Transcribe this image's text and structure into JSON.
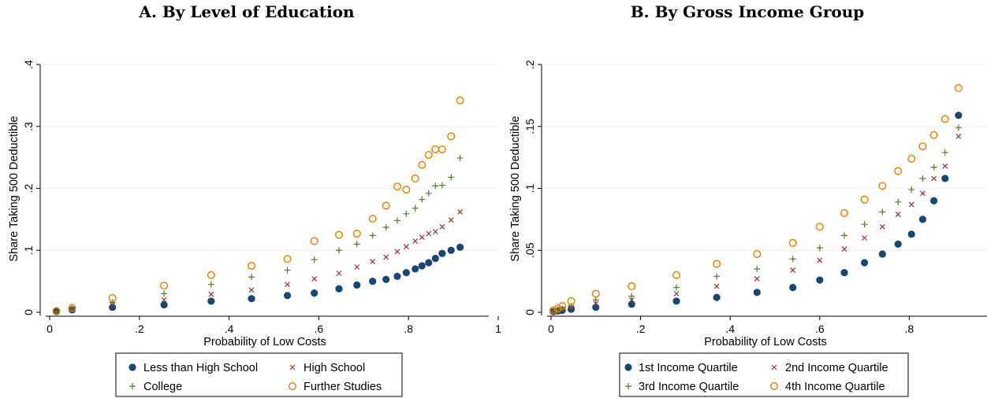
{
  "chart_data": [
    {
      "type": "scatter",
      "title": "A. By Level of Education",
      "xlabel": "Probability of Low Costs",
      "ylabel": "Share Taking 500 Deductible",
      "xlim": [
        0,
        1
      ],
      "ylim": [
        0,
        0.4
      ],
      "xticks": [
        0,
        0.2,
        0.4,
        0.6,
        0.8,
        1
      ],
      "xtick_labels": [
        "0",
        ".2",
        ".4",
        ".6",
        ".8",
        "1"
      ],
      "yticks": [
        0,
        0.1,
        0.2,
        0.3,
        0.4
      ],
      "ytick_labels": [
        "0",
        ".1",
        ".2",
        ".3",
        ".4"
      ],
      "grid": "horizontal",
      "legend_position": "bottom",
      "series": [
        {
          "name": "Less than High School",
          "marker": "filled-circle",
          "color": "#1a476f",
          "x": [
            0.015,
            0.05,
            0.14,
            0.255,
            0.36,
            0.45,
            0.53,
            0.59,
            0.645,
            0.685,
            0.72,
            0.75,
            0.775,
            0.795,
            0.815,
            0.83,
            0.845,
            0.86,
            0.875,
            0.895,
            0.915
          ],
          "y": [
            0.001,
            0.004,
            0.008,
            0.012,
            0.018,
            0.022,
            0.027,
            0.031,
            0.038,
            0.044,
            0.05,
            0.053,
            0.058,
            0.064,
            0.07,
            0.075,
            0.08,
            0.087,
            0.095,
            0.1,
            0.105
          ]
        },
        {
          "name": "High School",
          "marker": "x",
          "color": "#90353b",
          "x": [
            0.015,
            0.05,
            0.14,
            0.255,
            0.36,
            0.45,
            0.53,
            0.59,
            0.645,
            0.685,
            0.72,
            0.75,
            0.775,
            0.795,
            0.815,
            0.83,
            0.845,
            0.86,
            0.875,
            0.895,
            0.915
          ],
          "y": [
            0.001,
            0.005,
            0.012,
            0.02,
            0.029,
            0.036,
            0.045,
            0.054,
            0.063,
            0.073,
            0.082,
            0.089,
            0.098,
            0.106,
            0.115,
            0.121,
            0.127,
            0.13,
            0.138,
            0.149,
            0.162
          ]
        },
        {
          "name": "College",
          "marker": "plus",
          "color": "#55752f",
          "x": [
            0.015,
            0.05,
            0.14,
            0.255,
            0.36,
            0.45,
            0.53,
            0.59,
            0.645,
            0.685,
            0.72,
            0.75,
            0.775,
            0.795,
            0.815,
            0.83,
            0.845,
            0.86,
            0.875,
            0.895,
            0.915
          ],
          "y": [
            0.001,
            0.006,
            0.016,
            0.03,
            0.045,
            0.057,
            0.068,
            0.085,
            0.1,
            0.11,
            0.124,
            0.137,
            0.148,
            0.159,
            0.168,
            0.182,
            0.192,
            0.204,
            0.205,
            0.218,
            0.249
          ]
        },
        {
          "name": "Further Studies",
          "marker": "hollow-circle",
          "color": "#e37e00",
          "x": [
            0.015,
            0.05,
            0.14,
            0.255,
            0.36,
            0.45,
            0.53,
            0.59,
            0.645,
            0.685,
            0.72,
            0.75,
            0.775,
            0.795,
            0.815,
            0.83,
            0.845,
            0.86,
            0.875,
            0.895,
            0.915
          ],
          "y": [
            0.002,
            0.007,
            0.023,
            0.043,
            0.06,
            0.075,
            0.086,
            0.115,
            0.125,
            0.127,
            0.151,
            0.172,
            0.203,
            0.198,
            0.216,
            0.238,
            0.254,
            0.263,
            0.263,
            0.284,
            0.342
          ]
        }
      ]
    },
    {
      "type": "scatter",
      "title": "B. By Gross Income Group",
      "xlabel": "Probability of Low Costs",
      "ylabel": "Share Taking 500 Deductible",
      "xlim": [
        0,
        1
      ],
      "ylim": [
        0,
        0.2
      ],
      "xticks": [
        0,
        0.2,
        0.4,
        0.6,
        0.8,
        1
      ],
      "xtick_labels": [
        "0",
        ".2",
        ".4",
        ".6",
        ".8",
        "1"
      ],
      "yticks": [
        0,
        0.05,
        0.1,
        0.15,
        0.2
      ],
      "ytick_labels": [
        "0",
        ".05",
        ".1",
        ".15",
        ".2"
      ],
      "grid": "horizontal",
      "legend_position": "bottom",
      "series": [
        {
          "name": "1st Income Quartile",
          "marker": "filled-circle",
          "color": "#1a476f",
          "x": [
            0.005,
            0.015,
            0.025,
            0.045,
            0.1,
            0.18,
            0.28,
            0.37,
            0.46,
            0.54,
            0.6,
            0.655,
            0.7,
            0.74,
            0.775,
            0.805,
            0.83,
            0.855,
            0.88,
            0.91
          ],
          "y": [
            0.0005,
            0.001,
            0.0015,
            0.0025,
            0.004,
            0.0065,
            0.009,
            0.012,
            0.016,
            0.02,
            0.026,
            0.032,
            0.04,
            0.047,
            0.055,
            0.063,
            0.075,
            0.09,
            0.108,
            0.159
          ]
        },
        {
          "name": "2nd Income Quartile",
          "marker": "x",
          "color": "#90353b",
          "x": [
            0.005,
            0.015,
            0.025,
            0.045,
            0.1,
            0.18,
            0.28,
            0.37,
            0.46,
            0.54,
            0.6,
            0.655,
            0.7,
            0.74,
            0.775,
            0.805,
            0.83,
            0.855,
            0.88,
            0.91
          ],
          "y": [
            0.0008,
            0.0015,
            0.0025,
            0.004,
            0.007,
            0.01,
            0.015,
            0.021,
            0.027,
            0.034,
            0.042,
            0.051,
            0.06,
            0.069,
            0.079,
            0.087,
            0.096,
            0.108,
            0.118,
            0.142
          ]
        },
        {
          "name": "3rd Income Quartile",
          "marker": "plus",
          "color": "#55752f",
          "x": [
            0.005,
            0.015,
            0.025,
            0.045,
            0.1,
            0.18,
            0.28,
            0.37,
            0.46,
            0.54,
            0.6,
            0.655,
            0.7,
            0.74,
            0.775,
            0.805,
            0.83,
            0.855,
            0.88,
            0.91
          ],
          "y": [
            0.001,
            0.002,
            0.003,
            0.005,
            0.01,
            0.013,
            0.02,
            0.029,
            0.035,
            0.043,
            0.052,
            0.062,
            0.071,
            0.081,
            0.089,
            0.099,
            0.108,
            0.117,
            0.129,
            0.149
          ]
        },
        {
          "name": "4th Income Quartile",
          "marker": "hollow-circle",
          "color": "#e37e00",
          "x": [
            0.005,
            0.015,
            0.025,
            0.045,
            0.1,
            0.18,
            0.28,
            0.37,
            0.46,
            0.54,
            0.6,
            0.655,
            0.7,
            0.74,
            0.775,
            0.805,
            0.83,
            0.855,
            0.88,
            0.91
          ],
          "y": [
            0.0015,
            0.003,
            0.005,
            0.009,
            0.015,
            0.021,
            0.03,
            0.039,
            0.047,
            0.056,
            0.069,
            0.08,
            0.091,
            0.102,
            0.114,
            0.124,
            0.134,
            0.143,
            0.156,
            0.181
          ]
        }
      ]
    }
  ]
}
